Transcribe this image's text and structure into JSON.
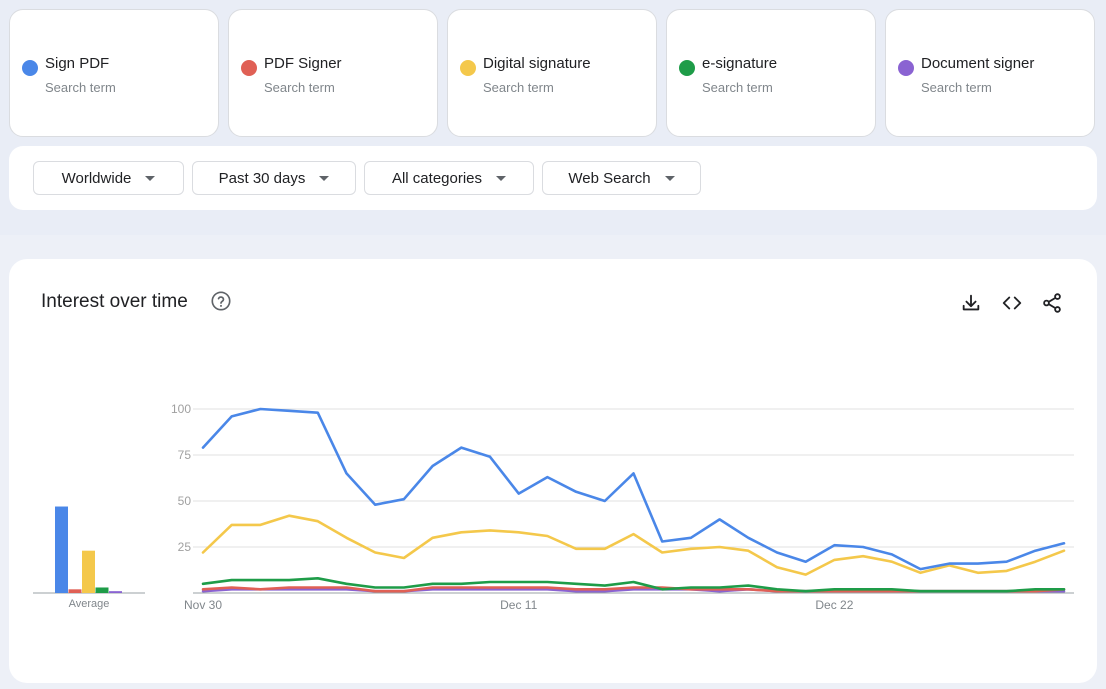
{
  "terms": [
    {
      "name": "Sign PDF",
      "sub": "Search term",
      "color": "#4a87e8"
    },
    {
      "name": "PDF Signer",
      "sub": "Search term",
      "color": "#e06055"
    },
    {
      "name": "Digital signature",
      "sub": "Search term",
      "color": "#f4c84b"
    },
    {
      "name": "e-signature",
      "sub": "Search term",
      "color": "#1e9c48"
    },
    {
      "name": "Document signer",
      "sub": "Search term",
      "color": "#8a63d2"
    }
  ],
  "filters": {
    "region": "Worldwide",
    "time": "Past 30 days",
    "category": "All categories",
    "search_type": "Web Search"
  },
  "panel": {
    "title": "Interest over time"
  },
  "icons": {
    "help": "help-circle-icon",
    "download": "download-icon",
    "embed": "embed-code-icon",
    "share": "share-icon"
  },
  "chart_data": {
    "type": "line",
    "title": "Interest over time",
    "ylim": [
      0,
      100
    ],
    "yticks": [
      25,
      50,
      75,
      100
    ],
    "xtick_labels": [
      {
        "index": 0,
        "label": "Nov 30"
      },
      {
        "index": 11,
        "label": "Dec 11"
      },
      {
        "index": 22,
        "label": "Dec 22"
      }
    ],
    "x": [
      "Nov 30",
      "Dec 1",
      "Dec 2",
      "Dec 3",
      "Dec 4",
      "Dec 5",
      "Dec 6",
      "Dec 7",
      "Dec 8",
      "Dec 9",
      "Dec 10",
      "Dec 11",
      "Dec 12",
      "Dec 13",
      "Dec 14",
      "Dec 15",
      "Dec 16",
      "Dec 17",
      "Dec 18",
      "Dec 19",
      "Dec 20",
      "Dec 21",
      "Dec 22",
      "Dec 23",
      "Dec 24",
      "Dec 25",
      "Dec 26",
      "Dec 27",
      "Dec 28",
      "Dec 29",
      "Dec 30"
    ],
    "series": [
      {
        "name": "Sign PDF",
        "color": "#4a87e8",
        "values": [
          79,
          96,
          100,
          99,
          98,
          65,
          48,
          51,
          69,
          79,
          74,
          54,
          63,
          55,
          50,
          65,
          28,
          30,
          40,
          30,
          22,
          17,
          26,
          25,
          21,
          13,
          16,
          16,
          17,
          23,
          27
        ]
      },
      {
        "name": "PDF Signer",
        "color": "#e06055",
        "values": [
          2,
          3,
          2,
          3,
          3,
          3,
          1,
          1,
          3,
          3,
          3,
          3,
          3,
          2,
          2,
          3,
          3,
          2,
          2,
          2,
          1,
          1,
          1,
          1,
          1,
          1,
          1,
          1,
          1,
          1,
          2
        ]
      },
      {
        "name": "Digital signature",
        "color": "#f4c84b",
        "values": [
          22,
          37,
          37,
          42,
          39,
          30,
          22,
          19,
          30,
          33,
          34,
          33,
          31,
          24,
          24,
          32,
          22,
          24,
          25,
          23,
          14,
          10,
          18,
          20,
          17,
          11,
          15,
          11,
          12,
          17,
          23
        ]
      },
      {
        "name": "e-signature",
        "color": "#1e9c48",
        "values": [
          5,
          7,
          7,
          7,
          8,
          5,
          3,
          3,
          5,
          5,
          6,
          6,
          6,
          5,
          4,
          6,
          2,
          3,
          3,
          4,
          2,
          1,
          2,
          2,
          2,
          1,
          1,
          1,
          1,
          2,
          2
        ]
      },
      {
        "name": "Document signer",
        "color": "#8a63d2",
        "values": [
          1,
          2,
          2,
          2,
          2,
          2,
          1,
          1,
          2,
          2,
          2,
          2,
          2,
          1,
          1,
          2,
          2,
          2,
          1,
          2,
          1,
          1,
          1,
          1,
          1,
          1,
          1,
          1,
          1,
          1,
          1
        ]
      }
    ],
    "averages": {
      "label": "Average",
      "values": [
        47,
        2,
        23,
        3,
        1
      ]
    }
  }
}
